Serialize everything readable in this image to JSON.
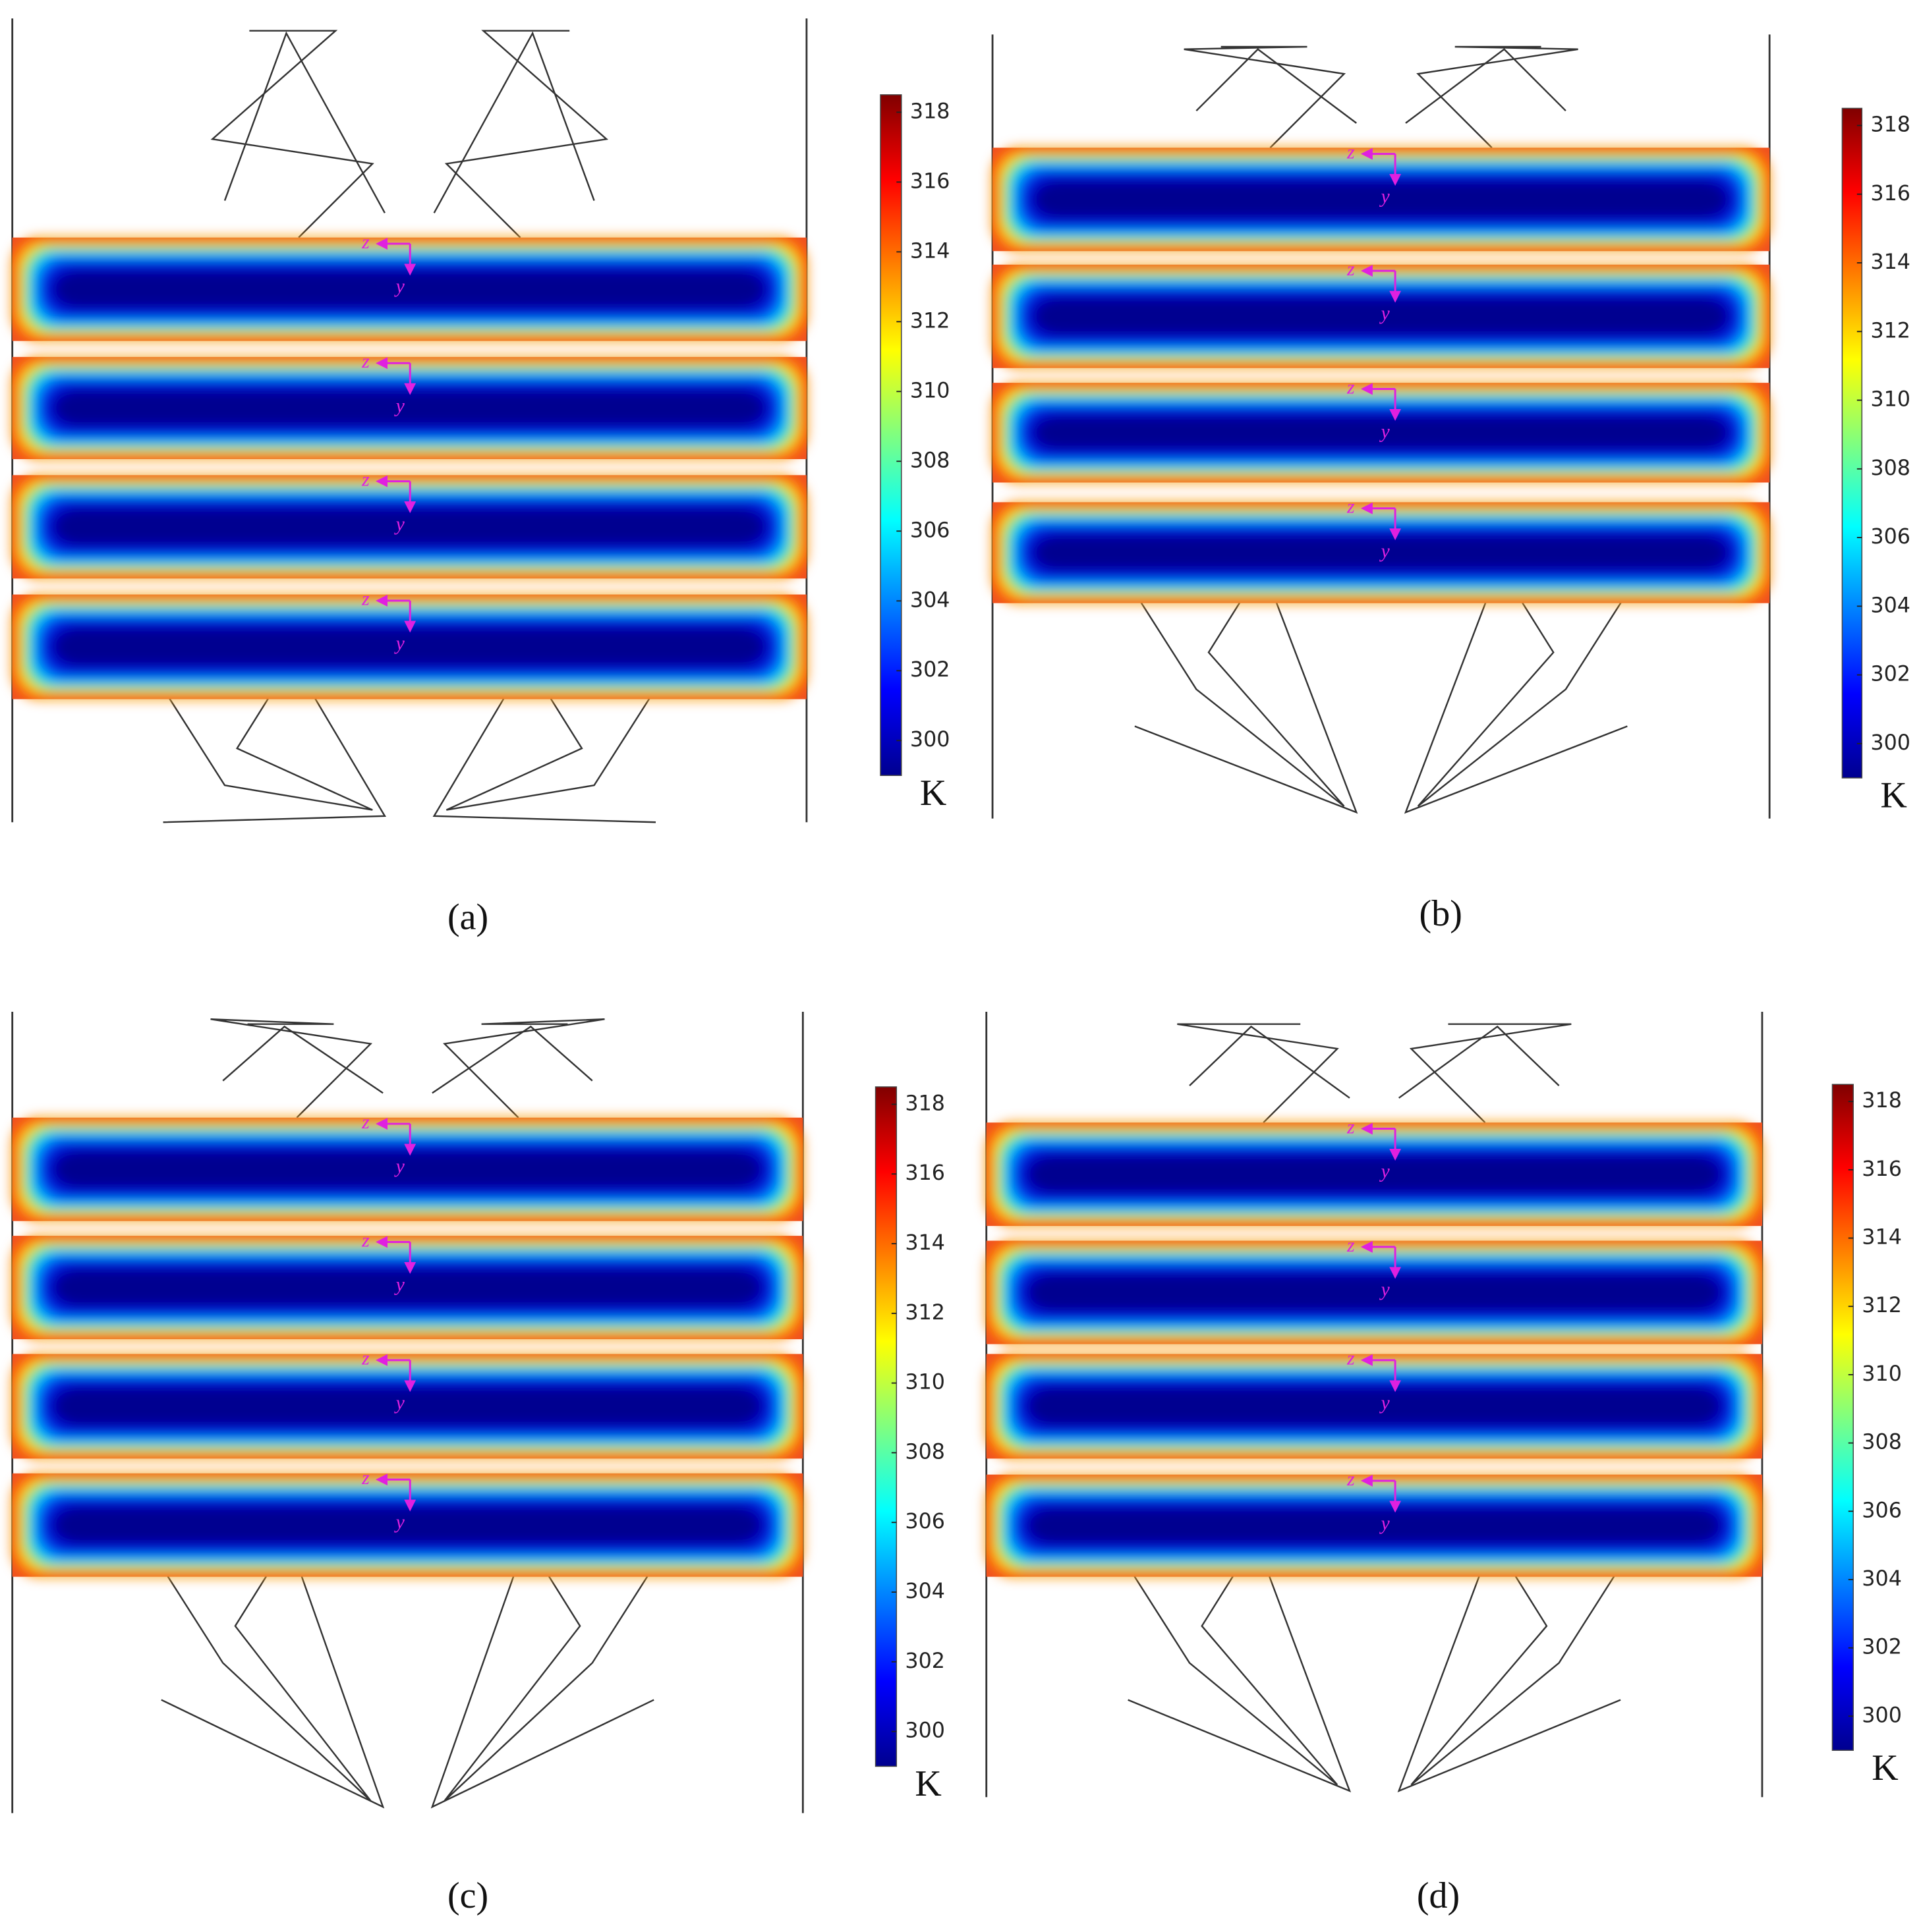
{
  "panels": [
    {
      "label": "(a)",
      "colorbar": {
        "lim": [
          299,
          318.5
        ],
        "ticks": [
          300,
          302,
          304,
          306,
          308,
          310,
          312,
          314,
          316,
          318
        ],
        "unit": "K"
      },
      "slices": [
        {
          "z": "z",
          "y": "y"
        },
        {
          "z": "z",
          "y": "y"
        },
        {
          "z": "z",
          "y": "y"
        },
        {
          "z": "z",
          "y": "y"
        }
      ]
    },
    {
      "label": "(b)",
      "colorbar": {
        "lim": [
          299,
          318.5
        ],
        "ticks": [
          300,
          302,
          304,
          306,
          308,
          310,
          312,
          314,
          316,
          318
        ],
        "unit": "K"
      },
      "slices": [
        {
          "z": "z",
          "y": "y"
        },
        {
          "z": "z",
          "y": "y"
        },
        {
          "z": "z",
          "y": "y"
        },
        {
          "z": "z",
          "y": "y"
        }
      ]
    },
    {
      "label": "(c)",
      "colorbar": {
        "lim": [
          299,
          318.5
        ],
        "ticks": [
          300,
          302,
          304,
          306,
          308,
          310,
          312,
          314,
          316,
          318
        ],
        "unit": "K"
      },
      "slices": [
        {
          "z": "z",
          "y": "y"
        },
        {
          "z": "z",
          "y": "y"
        },
        {
          "z": "z",
          "y": "y"
        },
        {
          "z": "z",
          "y": "y"
        }
      ]
    },
    {
      "label": "(d)",
      "colorbar": {
        "lim": [
          299,
          318.5
        ],
        "ticks": [
          300,
          302,
          304,
          306,
          308,
          310,
          312,
          314,
          316,
          318
        ],
        "unit": "K"
      },
      "slices": [
        {
          "z": "z",
          "y": "y"
        },
        {
          "z": "z",
          "y": "y"
        },
        {
          "z": "z",
          "y": "y"
        },
        {
          "z": "z",
          "y": "y"
        }
      ]
    }
  ]
}
